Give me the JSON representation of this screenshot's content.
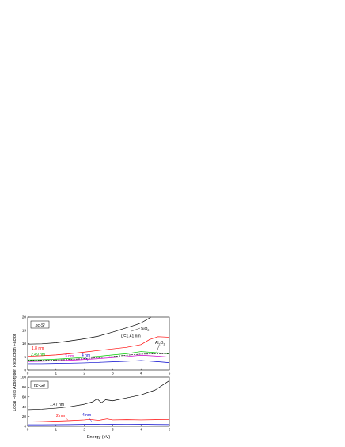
{
  "figure": {
    "ylabel": "Local Field Absorption Reduction Factor",
    "xlabel": "Energy (eV)"
  },
  "chart_data": [
    {
      "type": "line",
      "panel_label": "nc-Si",
      "xlim": [
        0,
        5
      ],
      "ylim": [
        0,
        20
      ],
      "xticks": [
        0,
        1,
        2,
        3,
        4,
        5
      ],
      "yticks": [
        0,
        5,
        10,
        15,
        20
      ],
      "grid": false,
      "series": [
        {
          "id": "si-141-sio2",
          "color": "#000000",
          "dash": false,
          "x": [
            0,
            0.5,
            1,
            1.5,
            2,
            2.5,
            3,
            3.5,
            3.8,
            4.0,
            4.2,
            4.35
          ],
          "y": [
            9.8,
            9.9,
            10.3,
            11.0,
            11.8,
            12.8,
            14.3,
            16.0,
            17.0,
            17.8,
            19.0,
            20.0
          ]
        },
        {
          "id": "si-18-sio2",
          "color": "#ff0000",
          "dash": false,
          "x": [
            0,
            0.5,
            1,
            1.5,
            2,
            2.5,
            3,
            3.5,
            4.0,
            4.3,
            4.6,
            5.0
          ],
          "y": [
            5.2,
            5.4,
            5.7,
            6.2,
            6.8,
            7.4,
            8.0,
            8.6,
            9.6,
            11.5,
            12.6,
            12.4
          ]
        },
        {
          "id": "si-249-sio2",
          "color": "#00cc00",
          "dash": false,
          "x": [
            0,
            0.5,
            1,
            1.5,
            2,
            2.5,
            3,
            3.5,
            4.0,
            4.5,
            5.0
          ],
          "y": [
            3.8,
            3.9,
            4.1,
            4.4,
            4.8,
            5.2,
            5.7,
            6.2,
            7.0,
            6.6,
            6.2
          ]
        },
        {
          "id": "si-3-sio2",
          "color": "#cc00cc",
          "dash": false,
          "x": [
            0,
            0.5,
            1,
            1.5,
            2,
            2.5,
            3,
            3.5,
            4.0,
            4.5,
            5.0
          ],
          "y": [
            3.2,
            3.3,
            3.5,
            3.7,
            4.0,
            4.3,
            4.7,
            5.1,
            5.6,
            5.3,
            4.9
          ]
        },
        {
          "id": "si-4-sio2",
          "color": "#0000cc",
          "dash": false,
          "x": [
            0,
            0.5,
            1,
            1.5,
            2,
            2.5,
            3,
            3.5,
            4.0,
            4.5,
            5.0
          ],
          "y": [
            2.4,
            2.4,
            2.5,
            2.6,
            2.7,
            2.9,
            3.1,
            3.3,
            3.6,
            3.2,
            2.8
          ]
        },
        {
          "id": "si-141-al2o3",
          "color": "#000000",
          "dash": true,
          "x": [
            0,
            0.5,
            1,
            1.5,
            2,
            2.5,
            3,
            3.5,
            4.0,
            4.5,
            5.0
          ],
          "y": [
            3.6,
            3.7,
            3.8,
            4.0,
            4.3,
            4.7,
            5.1,
            5.6,
            6.0,
            6.1,
            6.1
          ]
        }
      ],
      "annotations": [
        "SiO2",
        "D=1.41 nm",
        "Al2O3",
        "1.8 nm",
        "2.49 nm",
        "3 nm",
        "4 nm"
      ]
    },
    {
      "type": "line",
      "panel_label": "nc-Ge",
      "xlim": [
        0,
        5
      ],
      "ylim": [
        0,
        100
      ],
      "xticks": [
        0,
        1,
        2,
        3,
        4,
        5
      ],
      "yticks": [
        0,
        20,
        40,
        60,
        80,
        100
      ],
      "grid": false,
      "series": [
        {
          "id": "ge-147",
          "color": "#000000",
          "dash": false,
          "x": [
            0,
            0.5,
            1,
            1.5,
            2,
            2.3,
            2.45,
            2.6,
            2.75,
            3.0,
            3.5,
            4.0,
            4.5,
            5.0
          ],
          "y": [
            34,
            35,
            37,
            40,
            45,
            50,
            56,
            48,
            54,
            52,
            58,
            64,
            74,
            93
          ]
        },
        {
          "id": "ge-2",
          "color": "#ff0000",
          "dash": false,
          "x": [
            0,
            0.5,
            1,
            1.5,
            2,
            2.2,
            2.5,
            2.8,
            3.0,
            3.5,
            4.0,
            4.5,
            5.0
          ],
          "y": [
            9,
            9.5,
            10.5,
            11.5,
            13,
            14,
            12,
            15,
            13,
            13.5,
            13,
            13.5,
            14
          ]
        },
        {
          "id": "ge-4",
          "color": "#0000cc",
          "dash": false,
          "x": [
            0,
            0.5,
            1,
            1.5,
            2,
            2.5,
            3,
            3.5,
            4.0,
            4.5,
            5.0
          ],
          "y": [
            3,
            3,
            3.2,
            3.4,
            3.8,
            4.2,
            3.8,
            3.9,
            4.0,
            3.6,
            3.4
          ]
        }
      ],
      "annotations": [
        "1.47 nm",
        "2 nm",
        "4 nm"
      ]
    }
  ],
  "labels": {
    "si_sio2": "SiO",
    "si_sio2_sub": "2",
    "si_d_ital": "D",
    "si_d_rest": "=1.41 nm",
    "si_al2o3_a": "Al",
    "si_al2o3_s1": "2",
    "si_al2o3_b": "O",
    "si_al2o3_s2": "3",
    "si_18": "1.8 nm",
    "si_249": "2.49 nm",
    "si_3": "3 nm",
    "si_4": "4 nm",
    "ge_147": "1.47 nm",
    "ge_2": "2 nm",
    "ge_4": "4 nm"
  }
}
